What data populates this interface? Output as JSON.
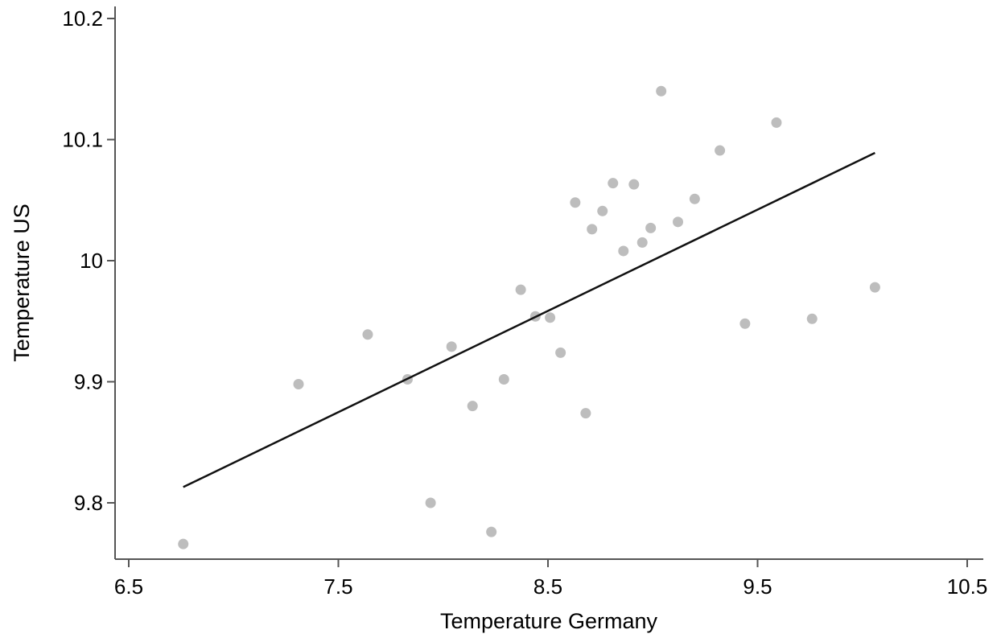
{
  "chart_data": {
    "type": "scatter",
    "title": "",
    "xlabel": "Temperature Germany",
    "ylabel": "Temperature US",
    "xlim": [
      6.5,
      10.5
    ],
    "ylim": [
      9.75,
      10.2
    ],
    "xticks": [
      6.5,
      7.5,
      8.5,
      9.5,
      10.5
    ],
    "xtick_labels": [
      "6.5",
      "7.5",
      "8.5",
      "9.5",
      "10.5"
    ],
    "yticks": [
      9.8,
      9.9,
      10.0,
      10.1,
      10.2
    ],
    "ytick_labels": [
      "9.8",
      "9.9",
      "10",
      "10.1",
      "10.2"
    ],
    "grid": false,
    "legend": "none",
    "colors": {
      "points": "#bdbdbd",
      "fit_line": "#111111",
      "axis": "#555555"
    },
    "series": [
      {
        "kind": "scatter",
        "x": [
          6.76,
          7.31,
          7.64,
          7.83,
          7.94,
          8.04,
          8.14,
          8.23,
          8.29,
          8.37,
          8.44,
          8.51,
          8.56,
          8.63,
          8.68,
          8.71,
          8.76,
          8.81,
          8.86,
          8.91,
          8.95,
          8.99,
          9.04,
          9.12,
          9.2,
          9.32,
          9.44,
          9.59,
          9.76,
          10.06
        ],
        "y": [
          9.766,
          9.898,
          9.939,
          9.902,
          9.8,
          9.929,
          9.88,
          9.776,
          9.902,
          9.976,
          9.954,
          9.953,
          9.924,
          10.048,
          9.874,
          10.026,
          10.041,
          10.064,
          10.008,
          10.063,
          10.015,
          10.027,
          10.14,
          10.032,
          10.051,
          10.091,
          9.948,
          10.114,
          9.952,
          9.978
        ]
      },
      {
        "kind": "line",
        "x": [
          6.76,
          10.06
        ],
        "y": [
          9.813,
          10.089
        ]
      }
    ]
  }
}
